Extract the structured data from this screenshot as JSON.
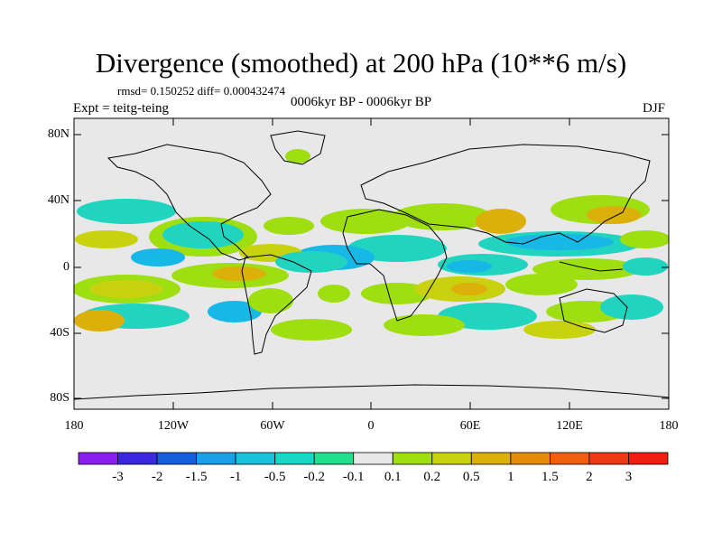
{
  "title": "Divergence (smoothed) at 200 hPa (10**6 m/s)",
  "stats": "rmsd= 0.150252 diff= 0.000432474",
  "experiment": "Expt = teitg-teing",
  "period": "0006kyr BP - 0006kyr BP",
  "season": "DJF",
  "lat_labels": [
    "80N",
    "40N",
    "0",
    "40S",
    "80S"
  ],
  "lon_labels": [
    "180",
    "120W",
    "60W",
    "0",
    "60E",
    "120E",
    "180"
  ],
  "colorbar": {
    "labels": [
      "-3",
      "-2",
      "-1.5",
      "-1",
      "-0.5",
      "-0.2",
      "-0.1",
      "0.1",
      "0.2",
      "0.5",
      "1",
      "1.5",
      "2",
      "3"
    ],
    "colors": [
      "#8a1eef",
      "#3a28e0",
      "#1660e0",
      "#1d9fe8",
      "#18c2dc",
      "#17d8c4",
      "#20e08e",
      "#e8e8e8",
      "#9fde10",
      "#c8d20e",
      "#dcb00a",
      "#e68a0a",
      "#ee6010",
      "#ee3a14",
      "#ee1e10"
    ]
  },
  "colors": {
    "background": "#e8e8e8",
    "neg1": "#20d4c0",
    "neg2": "#18b8e6",
    "pos1": "#9fde10",
    "pos2": "#c8d20e",
    "pos3": "#dcb00a"
  }
}
